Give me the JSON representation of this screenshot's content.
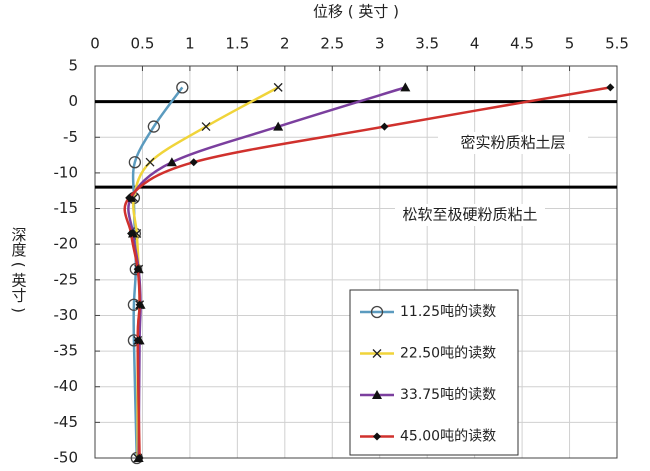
{
  "chart_data": {
    "type": "line",
    "x_label": "位移 ( 英寸 )",
    "y_label": "深度 ( 英寸 )",
    "xlim": [
      0,
      5.5
    ],
    "xticks": [
      0,
      0.5,
      1,
      1.5,
      2,
      2.5,
      3,
      3.5,
      4,
      4.5,
      5,
      5.5
    ],
    "ylim": [
      -50,
      5
    ],
    "yticks": [
      5,
      0,
      -5,
      -10,
      -15,
      -20,
      -25,
      -30,
      -35,
      -40,
      -45,
      -50
    ],
    "grid": true,
    "reference_lines": [
      0,
      -12
    ],
    "annotations": [
      "密实粉质粘土层",
      "松软至极硬粉质粘土"
    ],
    "legend": "lower right",
    "series": [
      {
        "name": "11.25吨的读数",
        "color": "#5b9bbf",
        "marker": "circle",
        "x": [
          0.92,
          0.62,
          0.42,
          0.41,
          0.42,
          0.43,
          0.41,
          0.41,
          0.44
        ],
        "y": [
          2,
          -3.5,
          -8.5,
          -13.5,
          -18.5,
          -23.5,
          -28.5,
          -33.5,
          -50
        ]
      },
      {
        "name": "22.50吨的读数",
        "color": "#f0d43a",
        "marker": "x",
        "x": [
          1.93,
          1.17,
          0.58,
          0.41,
          0.44,
          0.46,
          0.47,
          0.45,
          0.45
        ],
        "y": [
          2,
          -3.5,
          -8.5,
          -13.5,
          -18.5,
          -23.5,
          -28.5,
          -33.5,
          -50
        ]
      },
      {
        "name": "33.75吨的读数",
        "color": "#7b3f9e",
        "marker": "triangle",
        "x": [
          3.27,
          1.93,
          0.81,
          0.38,
          0.4,
          0.46,
          0.48,
          0.47,
          0.46
        ],
        "y": [
          2,
          -3.5,
          -8.5,
          -13.5,
          -18.5,
          -23.5,
          -28.5,
          -33.5,
          -50
        ]
      },
      {
        "name": "45.00吨的读数",
        "color": "#d0312d",
        "marker": "diamond",
        "x": [
          5.43,
          3.05,
          1.04,
          0.36,
          0.38,
          0.45,
          0.47,
          0.45,
          0.47
        ],
        "y": [
          2,
          -3.5,
          -8.5,
          -13.5,
          -18.5,
          -23.5,
          -28.5,
          -33.5,
          -50
        ]
      }
    ]
  }
}
